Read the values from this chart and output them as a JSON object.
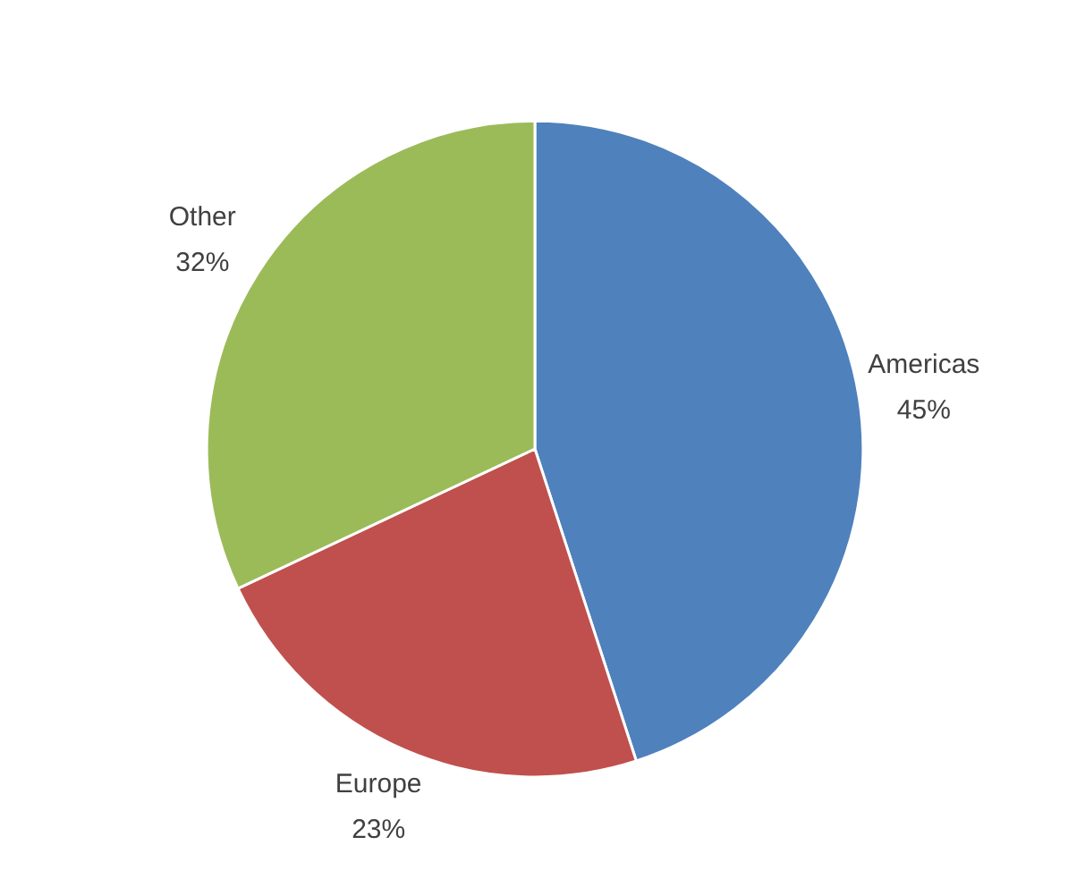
{
  "chart_data": {
    "type": "pie",
    "categories": [
      "Americas",
      "Europe",
      "Other"
    ],
    "values": [
      45,
      23,
      32
    ],
    "value_labels": [
      "45%",
      "23%",
      "32%"
    ],
    "colors": [
      "#4f81bd",
      "#c0504d",
      "#9bbb59"
    ]
  }
}
